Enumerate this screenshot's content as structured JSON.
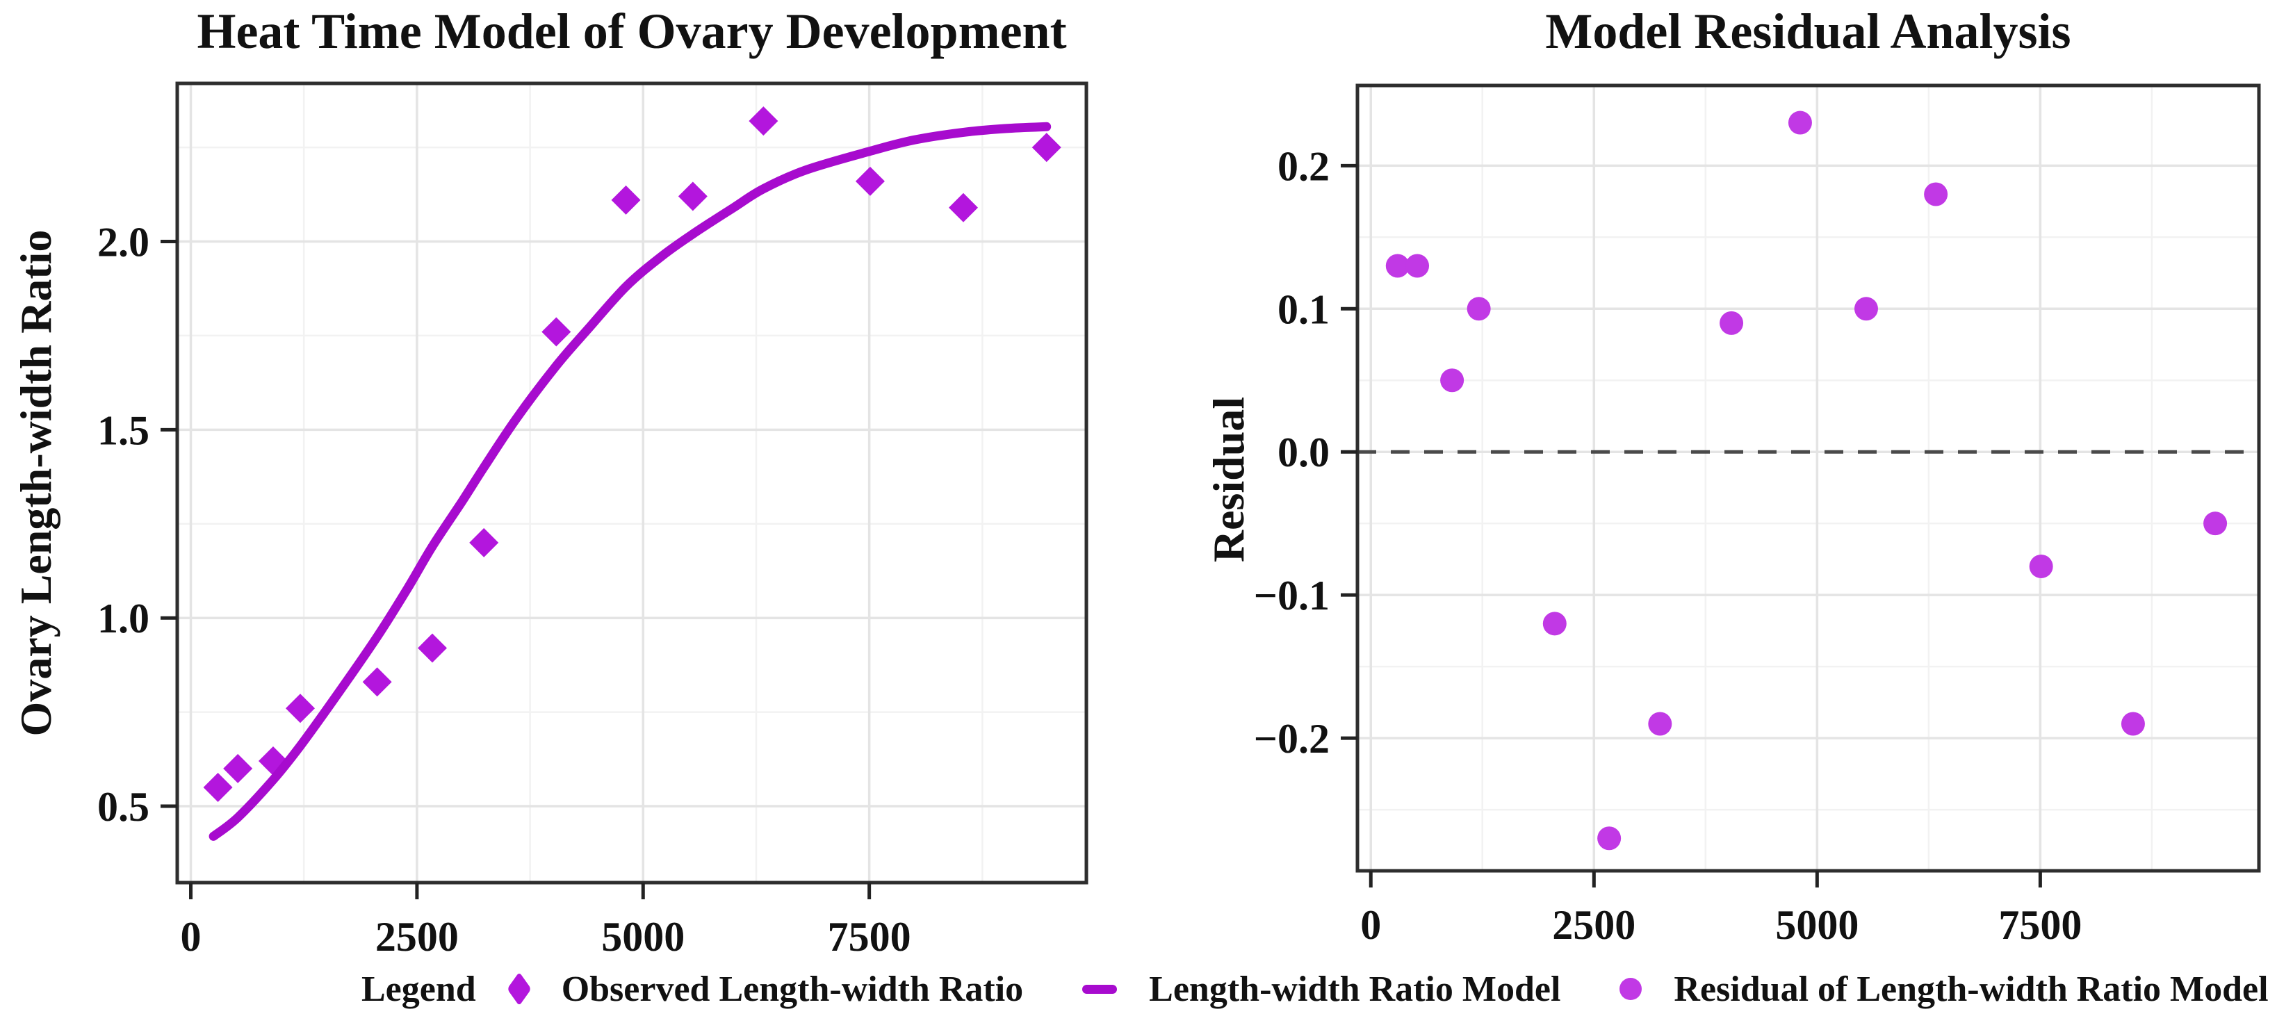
{
  "colors": {
    "observed": "#b316dd",
    "model_line": "#a70bce",
    "residual": "#c139e5",
    "grid_major": "#e4e4e4",
    "grid_minor": "#f2f2f2",
    "frame": "#2e2e2e",
    "tick": "#222222",
    "zero_line": "#4a4a4a",
    "text": "#111111",
    "background": "#ffffff"
  },
  "figure": {
    "legend": {
      "title": "Legend",
      "position": "bottom",
      "items": [
        {
          "marker": "diamond",
          "label": "Observed Length-width Ratio"
        },
        {
          "marker": "line",
          "label": "Length-width Ratio Model"
        },
        {
          "marker": "dot",
          "label": "Residual of Length-width Ratio Model"
        }
      ]
    }
  },
  "chart_data": [
    {
      "id": "ovary-model-panel",
      "type": "scatter",
      "title": "Heat Time Model of Ovary Development",
      "xlabel": "",
      "ylabel": "Ovary Length-width Ratio",
      "xlim": [
        -150,
        9900
      ],
      "ylim": [
        0.297,
        2.42
      ],
      "grid": true,
      "x_ticks": [
        0,
        2500,
        5000,
        7500
      ],
      "x_tick_labels": [
        "0",
        "2500",
        "5000",
        "7500"
      ],
      "y_ticks": [
        0.5,
        1.0,
        1.5,
        2.0
      ],
      "y_tick_labels": [
        "0.5",
        "1.0",
        "1.5",
        "2.0"
      ],
      "x_minor_ticks": [
        1250,
        3750,
        6250,
        8750
      ],
      "y_minor_ticks": [
        0.75,
        1.25,
        1.75,
        2.25
      ],
      "series": [
        {
          "name": "Observed Length-width Ratio",
          "kind": "points-diamond",
          "x": [
            300,
            520,
            910,
            1210,
            2060,
            2670,
            3240,
            4040,
            4810,
            5550,
            6330,
            7510,
            8540,
            9460
          ],
          "y": [
            0.55,
            0.6,
            0.62,
            0.76,
            0.83,
            0.92,
            1.2,
            1.76,
            2.11,
            2.12,
            2.32,
            2.16,
            2.09,
            2.25
          ]
        },
        {
          "name": "Length-width Ratio Model",
          "kind": "smooth-line",
          "x": [
            250,
            520,
            910,
            1210,
            1600,
            2060,
            2400,
            2670,
            3000,
            3240,
            3600,
            4040,
            4400,
            4810,
            5200,
            5550,
            6000,
            6330,
            6800,
            7510,
            8000,
            8540,
            9000,
            9460
          ],
          "y": [
            0.42,
            0.47,
            0.57,
            0.66,
            0.79,
            0.95,
            1.08,
            1.19,
            1.31,
            1.4,
            1.53,
            1.67,
            1.77,
            1.88,
            1.96,
            2.02,
            2.09,
            2.14,
            2.19,
            2.24,
            2.27,
            2.29,
            2.3,
            2.305
          ]
        }
      ]
    },
    {
      "id": "residual-panel",
      "type": "scatter",
      "title": "Model Residual Analysis",
      "xlabel": "",
      "ylabel": "Residual",
      "xlim": [
        -150,
        9950
      ],
      "ylim": [
        -0.2927,
        0.256
      ],
      "grid": true,
      "zero_line": 0.0,
      "x_ticks": [
        0,
        2500,
        5000,
        7500
      ],
      "x_tick_labels": [
        "0",
        "2500",
        "5000",
        "7500"
      ],
      "y_ticks": [
        0.2,
        0.1,
        0.0,
        -0.1,
        -0.2
      ],
      "y_tick_labels": [
        "0.2",
        "0.1",
        "0.0",
        "−0.1",
        "−0.2"
      ],
      "x_minor_ticks": [
        1250,
        3750,
        6250,
        8750
      ],
      "y_minor_ticks": [
        0.15,
        0.05,
        -0.05,
        -0.15,
        -0.25
      ],
      "series": [
        {
          "name": "Residual of Length-width Ratio Model",
          "kind": "points-dot",
          "x": [
            300,
            520,
            910,
            1210,
            2060,
            2670,
            3240,
            4040,
            4810,
            5550,
            6330,
            7510,
            8540,
            9460
          ],
          "y": [
            0.13,
            0.13,
            0.05,
            0.1,
            -0.12,
            -0.27,
            -0.19,
            0.09,
            0.23,
            0.1,
            0.18,
            -0.08,
            -0.19,
            -0.05
          ]
        }
      ]
    }
  ]
}
